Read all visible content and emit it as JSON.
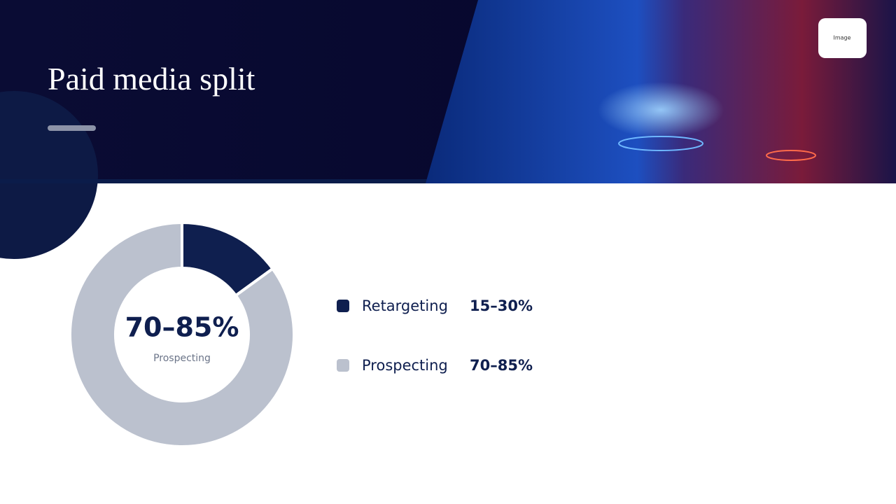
{
  "chart_data": {
    "type": "donut",
    "title": "Paid media split",
    "categories": [
      "Retargeting",
      "Prospecting"
    ],
    "values": [
      15,
      85
    ],
    "value_labels": [
      "15–30%",
      "70–85%"
    ],
    "colors": [
      "#0f1f4f",
      "#bbc1ce"
    ],
    "legend": "right"
  },
  "badge": "Image"
}
